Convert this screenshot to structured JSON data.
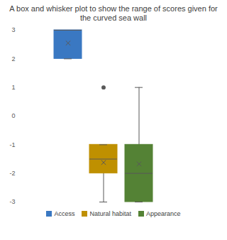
{
  "chart_data": {
    "type": "box",
    "title": "A box and whisker plot to show the range of scores given for the curved sea wall",
    "categories": [
      "Access",
      "Natural habitat",
      "Appearance"
    ],
    "colors": [
      "#3a78c2",
      "#bf9000",
      "#548235"
    ],
    "min": [
      2,
      -3,
      -3
    ],
    "q1": [
      2,
      -2,
      -3
    ],
    "median": [
      3,
      -1.5,
      -2
    ],
    "q3": [
      3,
      -1,
      -1
    ],
    "max": [
      3,
      -1,
      1
    ],
    "mean": [
      2.55,
      -1.62,
      -1.67
    ],
    "outliers": [
      [],
      [
        1
      ],
      []
    ],
    "ylim": [
      -3,
      3
    ],
    "yticks": [
      -3,
      -2,
      -1,
      0,
      1,
      2,
      3
    ],
    "grid": false,
    "legend": "bottom",
    "tick_labels": "y"
  }
}
